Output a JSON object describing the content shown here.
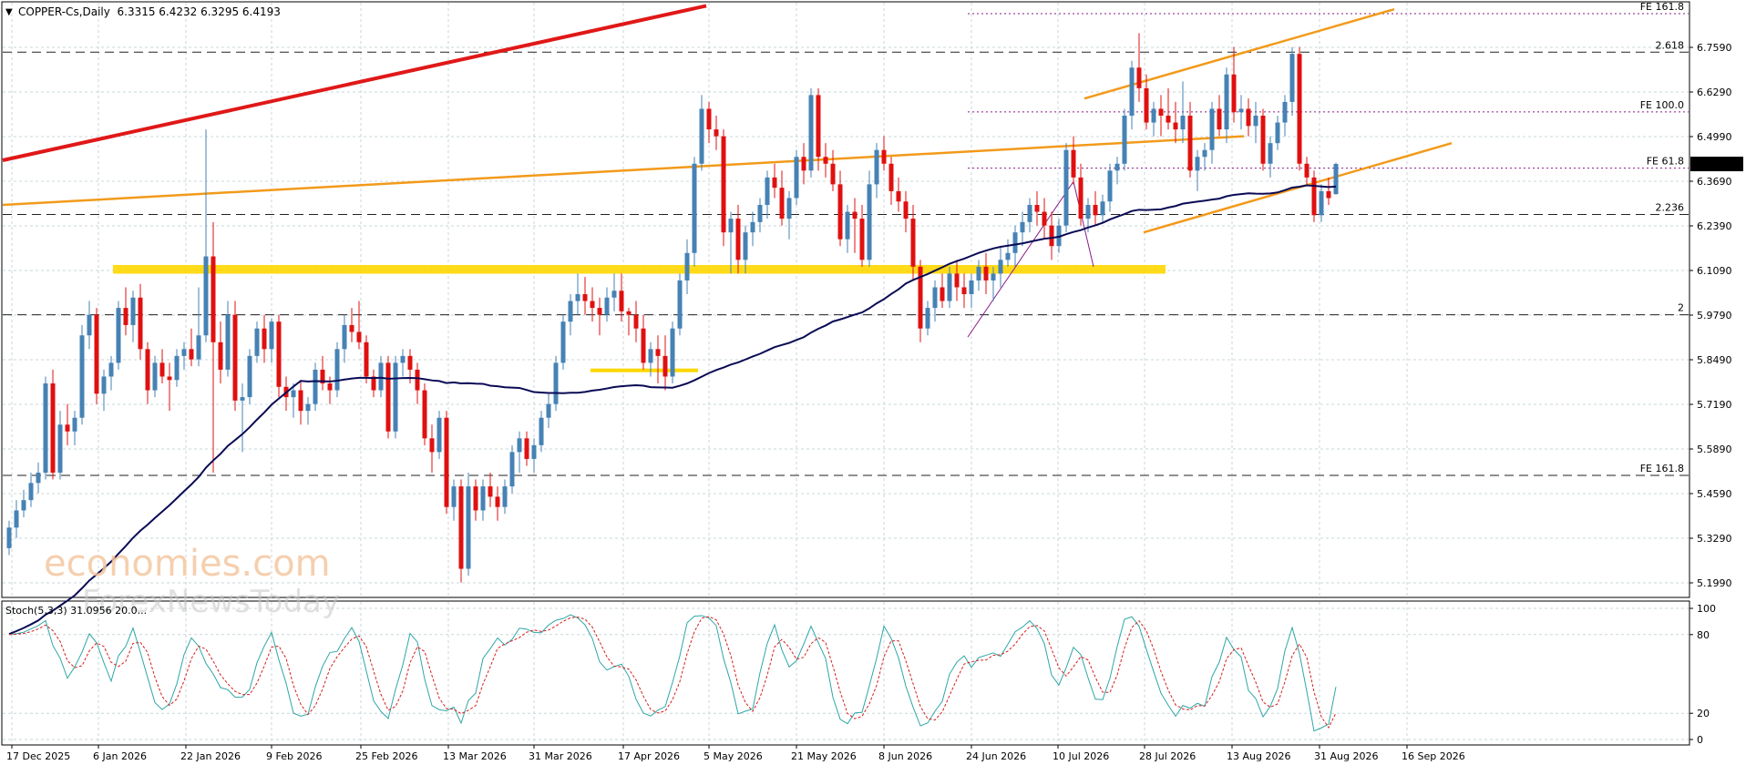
{
  "colors": {
    "bull": "#4682b4",
    "bear": "#e01010",
    "ma": "#0a0a55",
    "orange": "#f29a1a",
    "redtrend": "#e01818",
    "yellowzone": "#ffd700",
    "fibo": "#8a1a8a",
    "stochMain": "#2fa6a6",
    "stochSignal": "#d42020",
    "grid": "#c9d7db"
  },
  "header": {
    "symbol_line": "COPPER-Cs,Daily  6.3315 6.4232 6.3295 6.4193"
  },
  "watermark": {
    "line1": "economies.com",
    "line2": "ForexNewsToday"
  },
  "price_axis": {
    "ticks": [
      "6.7590",
      "6.6290",
      "6.4990",
      "6.3690",
      "6.2390",
      "6.1090",
      "5.9790",
      "5.8490",
      "5.7190",
      "5.5890",
      "5.4590",
      "5.3290",
      "5.1990"
    ],
    "current_price": "6.4193"
  },
  "levels": [
    {
      "label": "2.618",
      "price": 6.745
    },
    {
      "label": "2.236",
      "price": 6.272
    },
    {
      "label": "2",
      "price": 5.98
    },
    {
      "label": "FE 161.8",
      "price": 5.512
    }
  ],
  "fibo_levels": [
    {
      "label": "FE 161.8",
      "price": 6.857
    },
    {
      "label": "FE 100.0",
      "price": 6.571
    },
    {
      "label": "FE 61.8",
      "price": 6.407
    }
  ],
  "time_axis": [
    "17 Dec 2025",
    "6 Jan 2026",
    "22 Jan 2026",
    "9 Feb 2026",
    "25 Feb 2026",
    "13 Mar 2026",
    "31 Mar 2026",
    "17 Apr 2026",
    "5 May 2026",
    "21 May 2026",
    "8 Jun 2026",
    "24 Jun 2026",
    "10 Jul 2026",
    "28 Jul 2026",
    "13 Aug 2026",
    "31 Aug 2026",
    "16 Sep 2026"
  ],
  "stoch": {
    "label": "Stoch(5,3,3) 31.0956 20.0...",
    "ticks": [
      "100",
      "80",
      "20",
      "0"
    ]
  },
  "chart_data": {
    "type": "candlestick",
    "instrument": "COPPER-Cs",
    "timeframe": "Daily",
    "ylim": [
      5.16,
      6.86
    ],
    "ohlc": [
      {
        "o": 5.3,
        "h": 5.38,
        "l": 5.28,
        "c": 5.36
      },
      {
        "o": 5.36,
        "h": 5.44,
        "l": 5.33,
        "c": 5.41
      },
      {
        "o": 5.41,
        "h": 5.47,
        "l": 5.39,
        "c": 5.44
      },
      {
        "o": 5.44,
        "h": 5.52,
        "l": 5.42,
        "c": 5.49
      },
      {
        "o": 5.49,
        "h": 5.55,
        "l": 5.46,
        "c": 5.52
      },
      {
        "o": 5.52,
        "h": 5.8,
        "l": 5.5,
        "c": 5.78
      },
      {
        "o": 5.78,
        "h": 5.82,
        "l": 5.5,
        "c": 5.52
      },
      {
        "o": 5.52,
        "h": 5.7,
        "l": 5.5,
        "c": 5.66
      },
      {
        "o": 5.66,
        "h": 5.72,
        "l": 5.6,
        "c": 5.64
      },
      {
        "o": 5.64,
        "h": 5.7,
        "l": 5.6,
        "c": 5.68
      },
      {
        "o": 5.68,
        "h": 5.95,
        "l": 5.66,
        "c": 5.92
      },
      {
        "o": 5.92,
        "h": 6.02,
        "l": 5.88,
        "c": 5.98
      },
      {
        "o": 5.98,
        "h": 6.0,
        "l": 5.72,
        "c": 5.75
      },
      {
        "o": 5.75,
        "h": 5.82,
        "l": 5.7,
        "c": 5.8
      },
      {
        "o": 5.8,
        "h": 5.86,
        "l": 5.76,
        "c": 5.84
      },
      {
        "o": 5.84,
        "h": 6.02,
        "l": 5.82,
        "c": 6.0
      },
      {
        "o": 6.0,
        "h": 6.06,
        "l": 5.92,
        "c": 5.95
      },
      {
        "o": 5.95,
        "h": 6.05,
        "l": 5.9,
        "c": 6.03
      },
      {
        "o": 6.03,
        "h": 6.07,
        "l": 5.85,
        "c": 5.88
      },
      {
        "o": 5.88,
        "h": 5.9,
        "l": 5.72,
        "c": 5.76
      },
      {
        "o": 5.76,
        "h": 5.86,
        "l": 5.74,
        "c": 5.84
      },
      {
        "o": 5.84,
        "h": 5.88,
        "l": 5.78,
        "c": 5.8
      },
      {
        "o": 5.8,
        "h": 5.84,
        "l": 5.7,
        "c": 5.79
      },
      {
        "o": 5.79,
        "h": 5.88,
        "l": 5.77,
        "c": 5.86
      },
      {
        "o": 5.86,
        "h": 5.9,
        "l": 5.82,
        "c": 5.88
      },
      {
        "o": 5.88,
        "h": 5.94,
        "l": 5.83,
        "c": 5.85
      },
      {
        "o": 5.85,
        "h": 6.06,
        "l": 5.83,
        "c": 5.92
      },
      {
        "o": 5.92,
        "h": 6.52,
        "l": 5.9,
        "c": 6.15
      },
      {
        "o": 6.15,
        "h": 6.25,
        "l": 5.52,
        "c": 5.9
      },
      {
        "o": 5.9,
        "h": 5.96,
        "l": 5.78,
        "c": 5.82
      },
      {
        "o": 5.82,
        "h": 6.02,
        "l": 5.8,
        "c": 5.98
      },
      {
        "o": 5.98,
        "h": 6.02,
        "l": 5.7,
        "c": 5.73
      },
      {
        "o": 5.73,
        "h": 5.78,
        "l": 5.58,
        "c": 5.74
      },
      {
        "o": 5.74,
        "h": 5.88,
        "l": 5.72,
        "c": 5.86
      },
      {
        "o": 5.86,
        "h": 5.96,
        "l": 5.84,
        "c": 5.94
      },
      {
        "o": 5.94,
        "h": 5.98,
        "l": 5.84,
        "c": 5.88
      },
      {
        "o": 5.88,
        "h": 5.97,
        "l": 5.84,
        "c": 5.96
      },
      {
        "o": 5.96,
        "h": 5.98,
        "l": 5.74,
        "c": 5.77
      },
      {
        "o": 5.77,
        "h": 5.8,
        "l": 5.7,
        "c": 5.74
      },
      {
        "o": 5.74,
        "h": 5.78,
        "l": 5.68,
        "c": 5.76
      },
      {
        "o": 5.76,
        "h": 5.79,
        "l": 5.66,
        "c": 5.7
      },
      {
        "o": 5.7,
        "h": 5.74,
        "l": 5.66,
        "c": 5.72
      },
      {
        "o": 5.72,
        "h": 5.84,
        "l": 5.7,
        "c": 5.82
      },
      {
        "o": 5.82,
        "h": 5.86,
        "l": 5.76,
        "c": 5.78
      },
      {
        "o": 5.78,
        "h": 5.8,
        "l": 5.72,
        "c": 5.76
      },
      {
        "o": 5.76,
        "h": 5.9,
        "l": 5.74,
        "c": 5.88
      },
      {
        "o": 5.88,
        "h": 5.98,
        "l": 5.84,
        "c": 5.95
      },
      {
        "o": 5.95,
        "h": 6.0,
        "l": 5.9,
        "c": 5.93
      },
      {
        "o": 5.93,
        "h": 6.02,
        "l": 5.88,
        "c": 5.9
      },
      {
        "o": 5.9,
        "h": 5.92,
        "l": 5.78,
        "c": 5.8
      },
      {
        "o": 5.8,
        "h": 5.82,
        "l": 5.74,
        "c": 5.76
      },
      {
        "o": 5.76,
        "h": 5.86,
        "l": 5.74,
        "c": 5.84
      },
      {
        "o": 5.84,
        "h": 5.86,
        "l": 5.62,
        "c": 5.64
      },
      {
        "o": 5.64,
        "h": 5.86,
        "l": 5.62,
        "c": 5.84
      },
      {
        "o": 5.84,
        "h": 5.88,
        "l": 5.8,
        "c": 5.86
      },
      {
        "o": 5.86,
        "h": 5.88,
        "l": 5.78,
        "c": 5.82
      },
      {
        "o": 5.82,
        "h": 5.84,
        "l": 5.72,
        "c": 5.76
      },
      {
        "o": 5.76,
        "h": 5.78,
        "l": 5.6,
        "c": 5.62
      },
      {
        "o": 5.62,
        "h": 5.66,
        "l": 5.52,
        "c": 5.58
      },
      {
        "o": 5.58,
        "h": 5.7,
        "l": 5.56,
        "c": 5.68
      },
      {
        "o": 5.68,
        "h": 5.7,
        "l": 5.4,
        "c": 5.42
      },
      {
        "o": 5.42,
        "h": 5.5,
        "l": 5.38,
        "c": 5.48
      },
      {
        "o": 5.48,
        "h": 5.5,
        "l": 5.2,
        "c": 5.24
      },
      {
        "o": 5.24,
        "h": 5.52,
        "l": 5.22,
        "c": 5.48
      },
      {
        "o": 5.48,
        "h": 5.5,
        "l": 5.38,
        "c": 5.41
      },
      {
        "o": 5.41,
        "h": 5.5,
        "l": 5.38,
        "c": 5.48
      },
      {
        "o": 5.48,
        "h": 5.52,
        "l": 5.42,
        "c": 5.45
      },
      {
        "o": 5.45,
        "h": 5.48,
        "l": 5.38,
        "c": 5.42
      },
      {
        "o": 5.42,
        "h": 5.5,
        "l": 5.4,
        "c": 5.48
      },
      {
        "o": 5.48,
        "h": 5.6,
        "l": 5.46,
        "c": 5.58
      },
      {
        "o": 5.58,
        "h": 5.64,
        "l": 5.52,
        "c": 5.62
      },
      {
        "o": 5.62,
        "h": 5.64,
        "l": 5.54,
        "c": 5.56
      },
      {
        "o": 5.56,
        "h": 5.62,
        "l": 5.52,
        "c": 5.6
      },
      {
        "o": 5.6,
        "h": 5.7,
        "l": 5.58,
        "c": 5.68
      },
      {
        "o": 5.68,
        "h": 5.75,
        "l": 5.65,
        "c": 5.72
      },
      {
        "o": 5.72,
        "h": 5.86,
        "l": 5.7,
        "c": 5.84
      },
      {
        "o": 5.84,
        "h": 5.98,
        "l": 5.82,
        "c": 5.96
      },
      {
        "o": 5.96,
        "h": 6.04,
        "l": 5.92,
        "c": 6.02
      },
      {
        "o": 6.02,
        "h": 6.1,
        "l": 5.98,
        "c": 6.04
      },
      {
        "o": 6.04,
        "h": 6.09,
        "l": 5.98,
        "c": 6.02
      },
      {
        "o": 6.02,
        "h": 6.06,
        "l": 5.96,
        "c": 6.0
      },
      {
        "o": 6.0,
        "h": 6.03,
        "l": 5.92,
        "c": 5.98
      },
      {
        "o": 5.98,
        "h": 6.06,
        "l": 5.96,
        "c": 6.03
      },
      {
        "o": 6.03,
        "h": 6.1,
        "l": 5.99,
        "c": 6.05
      },
      {
        "o": 6.05,
        "h": 6.1,
        "l": 5.96,
        "c": 5.99
      },
      {
        "o": 5.99,
        "h": 6.0,
        "l": 5.92,
        "c": 5.98
      },
      {
        "o": 5.98,
        "h": 6.02,
        "l": 5.9,
        "c": 5.94
      },
      {
        "o": 5.94,
        "h": 5.98,
        "l": 5.82,
        "c": 5.84
      },
      {
        "o": 5.84,
        "h": 5.9,
        "l": 5.8,
        "c": 5.88
      },
      {
        "o": 5.88,
        "h": 5.92,
        "l": 5.78,
        "c": 5.86
      },
      {
        "o": 5.86,
        "h": 5.92,
        "l": 5.76,
        "c": 5.8
      },
      {
        "o": 5.8,
        "h": 5.96,
        "l": 5.78,
        "c": 5.94
      },
      {
        "o": 5.94,
        "h": 6.1,
        "l": 5.92,
        "c": 6.08
      },
      {
        "o": 6.08,
        "h": 6.2,
        "l": 6.04,
        "c": 6.16
      },
      {
        "o": 6.16,
        "h": 6.44,
        "l": 6.12,
        "c": 6.42
      },
      {
        "o": 6.42,
        "h": 6.62,
        "l": 6.4,
        "c": 6.58
      },
      {
        "o": 6.58,
        "h": 6.6,
        "l": 6.48,
        "c": 6.52
      },
      {
        "o": 6.52,
        "h": 6.56,
        "l": 6.46,
        "c": 6.5
      },
      {
        "o": 6.5,
        "h": 6.52,
        "l": 6.18,
        "c": 6.22
      },
      {
        "o": 6.22,
        "h": 6.28,
        "l": 6.1,
        "c": 6.26
      },
      {
        "o": 6.26,
        "h": 6.3,
        "l": 6.1,
        "c": 6.14
      },
      {
        "o": 6.14,
        "h": 6.24,
        "l": 6.1,
        "c": 6.22
      },
      {
        "o": 6.22,
        "h": 6.28,
        "l": 6.18,
        "c": 6.25
      },
      {
        "o": 6.25,
        "h": 6.32,
        "l": 6.22,
        "c": 6.3
      },
      {
        "o": 6.3,
        "h": 6.4,
        "l": 6.26,
        "c": 6.38
      },
      {
        "o": 6.38,
        "h": 6.42,
        "l": 6.32,
        "c": 6.35
      },
      {
        "o": 6.35,
        "h": 6.4,
        "l": 6.24,
        "c": 6.26
      },
      {
        "o": 6.26,
        "h": 6.34,
        "l": 6.2,
        "c": 6.32
      },
      {
        "o": 6.32,
        "h": 6.46,
        "l": 6.3,
        "c": 6.44
      },
      {
        "o": 6.44,
        "h": 6.48,
        "l": 6.36,
        "c": 6.4
      },
      {
        "o": 6.4,
        "h": 6.64,
        "l": 6.38,
        "c": 6.62
      },
      {
        "o": 6.62,
        "h": 6.64,
        "l": 6.4,
        "c": 6.44
      },
      {
        "o": 6.44,
        "h": 6.48,
        "l": 6.38,
        "c": 6.42
      },
      {
        "o": 6.42,
        "h": 6.46,
        "l": 6.34,
        "c": 6.36
      },
      {
        "o": 6.36,
        "h": 6.4,
        "l": 6.18,
        "c": 6.2
      },
      {
        "o": 6.2,
        "h": 6.3,
        "l": 6.16,
        "c": 6.28
      },
      {
        "o": 6.28,
        "h": 6.32,
        "l": 6.16,
        "c": 6.26
      },
      {
        "o": 6.26,
        "h": 6.3,
        "l": 6.12,
        "c": 6.14
      },
      {
        "o": 6.14,
        "h": 6.4,
        "l": 6.12,
        "c": 6.36
      },
      {
        "o": 6.36,
        "h": 6.48,
        "l": 6.32,
        "c": 6.46
      },
      {
        "o": 6.46,
        "h": 6.5,
        "l": 6.4,
        "c": 6.42
      },
      {
        "o": 6.42,
        "h": 6.44,
        "l": 6.3,
        "c": 6.34
      },
      {
        "o": 6.34,
        "h": 6.38,
        "l": 6.28,
        "c": 6.31
      },
      {
        "o": 6.31,
        "h": 6.34,
        "l": 6.22,
        "c": 6.26
      },
      {
        "o": 6.26,
        "h": 6.3,
        "l": 6.08,
        "c": 6.12
      },
      {
        "o": 6.12,
        "h": 6.14,
        "l": 5.9,
        "c": 5.94
      },
      {
        "o": 5.94,
        "h": 6.02,
        "l": 5.92,
        "c": 6.0
      },
      {
        "o": 6.0,
        "h": 6.08,
        "l": 5.96,
        "c": 6.06
      },
      {
        "o": 6.06,
        "h": 6.1,
        "l": 6.0,
        "c": 6.02
      },
      {
        "o": 6.02,
        "h": 6.12,
        "l": 6.0,
        "c": 6.1
      },
      {
        "o": 6.1,
        "h": 6.14,
        "l": 6.02,
        "c": 6.06
      },
      {
        "o": 6.06,
        "h": 6.1,
        "l": 6.0,
        "c": 6.04
      },
      {
        "o": 6.04,
        "h": 6.1,
        "l": 6.0,
        "c": 6.08
      },
      {
        "o": 6.08,
        "h": 6.14,
        "l": 6.05,
        "c": 6.12
      },
      {
        "o": 6.12,
        "h": 6.16,
        "l": 6.04,
        "c": 6.08
      },
      {
        "o": 6.08,
        "h": 6.12,
        "l": 6.02,
        "c": 6.1
      },
      {
        "o": 6.1,
        "h": 6.18,
        "l": 6.06,
        "c": 6.14
      },
      {
        "o": 6.14,
        "h": 6.2,
        "l": 6.12,
        "c": 6.16
      },
      {
        "o": 6.16,
        "h": 6.24,
        "l": 6.12,
        "c": 6.22
      },
      {
        "o": 6.22,
        "h": 6.28,
        "l": 6.18,
        "c": 6.25
      },
      {
        "o": 6.25,
        "h": 6.32,
        "l": 6.22,
        "c": 6.3
      },
      {
        "o": 6.3,
        "h": 6.34,
        "l": 6.24,
        "c": 6.28
      },
      {
        "o": 6.28,
        "h": 6.32,
        "l": 6.2,
        "c": 6.24
      },
      {
        "o": 6.24,
        "h": 6.28,
        "l": 6.14,
        "c": 6.18
      },
      {
        "o": 6.18,
        "h": 6.26,
        "l": 6.16,
        "c": 6.24
      },
      {
        "o": 6.24,
        "h": 6.48,
        "l": 6.22,
        "c": 6.46
      },
      {
        "o": 6.46,
        "h": 6.5,
        "l": 6.36,
        "c": 6.38
      },
      {
        "o": 6.38,
        "h": 6.42,
        "l": 6.24,
        "c": 6.26
      },
      {
        "o": 6.26,
        "h": 6.32,
        "l": 6.22,
        "c": 6.3
      },
      {
        "o": 6.3,
        "h": 6.34,
        "l": 6.24,
        "c": 6.27
      },
      {
        "o": 6.27,
        "h": 6.33,
        "l": 6.25,
        "c": 6.31
      },
      {
        "o": 6.31,
        "h": 6.42,
        "l": 6.28,
        "c": 6.4
      },
      {
        "o": 6.4,
        "h": 6.44,
        "l": 6.36,
        "c": 6.42
      },
      {
        "o": 6.42,
        "h": 6.58,
        "l": 6.4,
        "c": 6.56
      },
      {
        "o": 6.56,
        "h": 6.72,
        "l": 6.52,
        "c": 6.7
      },
      {
        "o": 6.7,
        "h": 6.8,
        "l": 6.6,
        "c": 6.64
      },
      {
        "o": 6.64,
        "h": 6.68,
        "l": 6.52,
        "c": 6.54
      },
      {
        "o": 6.54,
        "h": 6.6,
        "l": 6.5,
        "c": 6.58
      },
      {
        "o": 6.58,
        "h": 6.62,
        "l": 6.5,
        "c": 6.56
      },
      {
        "o": 6.56,
        "h": 6.64,
        "l": 6.52,
        "c": 6.54
      },
      {
        "o": 6.54,
        "h": 6.6,
        "l": 6.48,
        "c": 6.52
      },
      {
        "o": 6.52,
        "h": 6.66,
        "l": 6.48,
        "c": 6.56
      },
      {
        "o": 6.56,
        "h": 6.6,
        "l": 6.38,
        "c": 6.4
      },
      {
        "o": 6.4,
        "h": 6.46,
        "l": 6.34,
        "c": 6.44
      },
      {
        "o": 6.44,
        "h": 6.48,
        "l": 6.4,
        "c": 6.46
      },
      {
        "o": 6.46,
        "h": 6.6,
        "l": 6.42,
        "c": 6.58
      },
      {
        "o": 6.58,
        "h": 6.62,
        "l": 6.5,
        "c": 6.52
      },
      {
        "o": 6.52,
        "h": 6.7,
        "l": 6.48,
        "c": 6.68
      },
      {
        "o": 6.68,
        "h": 6.76,
        "l": 6.54,
        "c": 6.57
      },
      {
        "o": 6.57,
        "h": 6.62,
        "l": 6.52,
        "c": 6.58
      },
      {
        "o": 6.58,
        "h": 6.61,
        "l": 6.5,
        "c": 6.53
      },
      {
        "o": 6.53,
        "h": 6.6,
        "l": 6.48,
        "c": 6.56
      },
      {
        "o": 6.56,
        "h": 6.58,
        "l": 6.4,
        "c": 6.42
      },
      {
        "o": 6.42,
        "h": 6.5,
        "l": 6.38,
        "c": 6.48
      },
      {
        "o": 6.48,
        "h": 6.56,
        "l": 6.46,
        "c": 6.54
      },
      {
        "o": 6.54,
        "h": 6.62,
        "l": 6.5,
        "c": 6.6
      },
      {
        "o": 6.6,
        "h": 6.76,
        "l": 6.56,
        "c": 6.74
      },
      {
        "o": 6.74,
        "h": 6.76,
        "l": 6.4,
        "c": 6.42
      },
      {
        "o": 6.42,
        "h": 6.44,
        "l": 6.36,
        "c": 6.38
      },
      {
        "o": 6.38,
        "h": 6.4,
        "l": 6.25,
        "c": 6.27
      },
      {
        "o": 6.27,
        "h": 6.36,
        "l": 6.25,
        "c": 6.34
      },
      {
        "o": 6.34,
        "h": 6.38,
        "l": 6.3,
        "c": 6.32
      },
      {
        "o": 6.3315,
        "h": 6.4232,
        "l": 6.3295,
        "c": 6.4193
      }
    ]
  }
}
